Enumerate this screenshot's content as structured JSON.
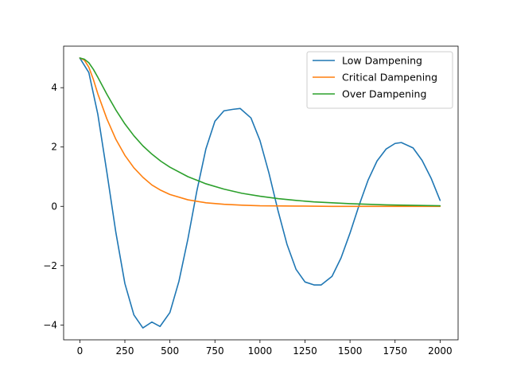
{
  "chart_data": {
    "type": "line",
    "title": "",
    "xlabel": "",
    "ylabel": "",
    "xlim": [
      -90,
      2100
    ],
    "ylim": [
      -4.5,
      5.4
    ],
    "xticks": [
      0,
      250,
      500,
      750,
      1000,
      1250,
      1500,
      1750,
      2000
    ],
    "yticks": [
      -4,
      -2,
      0,
      2,
      4
    ],
    "ytick_labels": [
      "−4",
      "−2",
      "0",
      "2",
      "4"
    ],
    "grid": false,
    "legend_position": "top-right",
    "series": [
      {
        "name": "Low Dampening",
        "color": "#1f77b4",
        "x": [
          0,
          50,
          100,
          150,
          200,
          250,
          300,
          350,
          400,
          445,
          500,
          550,
          600,
          650,
          700,
          750,
          800,
          850,
          890,
          950,
          1000,
          1050,
          1100,
          1150,
          1200,
          1250,
          1300,
          1340,
          1400,
          1450,
          1500,
          1550,
          1600,
          1650,
          1700,
          1750,
          1785,
          1850,
          1900,
          1950,
          2000
        ],
        "y": [
          5.0,
          4.51,
          3.1,
          1.15,
          -0.88,
          -2.6,
          -3.66,
          -4.1,
          -3.9,
          -4.05,
          -3.58,
          -2.53,
          -1.1,
          0.53,
          1.94,
          2.87,
          3.22,
          3.27,
          3.3,
          2.98,
          2.22,
          1.12,
          -0.14,
          -1.28,
          -2.12,
          -2.55,
          -2.65,
          -2.65,
          -2.36,
          -1.74,
          -0.9,
          0.03,
          0.88,
          1.53,
          1.93,
          2.12,
          2.15,
          1.97,
          1.55,
          0.95,
          0.2
        ]
      },
      {
        "name": "Critical Dampening",
        "color": "#ff7f0e",
        "x": [
          0,
          25,
          50,
          75,
          100,
          150,
          200,
          250,
          300,
          350,
          400,
          450,
          500,
          600,
          700,
          800,
          900,
          1000,
          1200,
          1400,
          1600,
          1800,
          2000
        ],
        "y": [
          5.0,
          4.93,
          4.69,
          4.28,
          3.79,
          2.95,
          2.26,
          1.72,
          1.3,
          0.98,
          0.72,
          0.54,
          0.4,
          0.22,
          0.12,
          0.07,
          0.04,
          0.02,
          0.01,
          0.0,
          0.0,
          0.0,
          0.0
        ]
      },
      {
        "name": "Over Dampening",
        "color": "#2ca02c",
        "x": [
          0,
          25,
          50,
          75,
          100,
          150,
          200,
          250,
          300,
          350,
          400,
          450,
          500,
          600,
          700,
          800,
          900,
          1000,
          1100,
          1200,
          1300,
          1400,
          1500,
          1600,
          1700,
          1800,
          1900,
          2000
        ],
        "y": [
          5.0,
          4.96,
          4.84,
          4.62,
          4.35,
          3.78,
          3.25,
          2.78,
          2.38,
          2.04,
          1.76,
          1.52,
          1.32,
          1.0,
          0.76,
          0.58,
          0.44,
          0.34,
          0.26,
          0.2,
          0.15,
          0.12,
          0.09,
          0.07,
          0.05,
          0.04,
          0.03,
          0.02
        ]
      }
    ]
  }
}
